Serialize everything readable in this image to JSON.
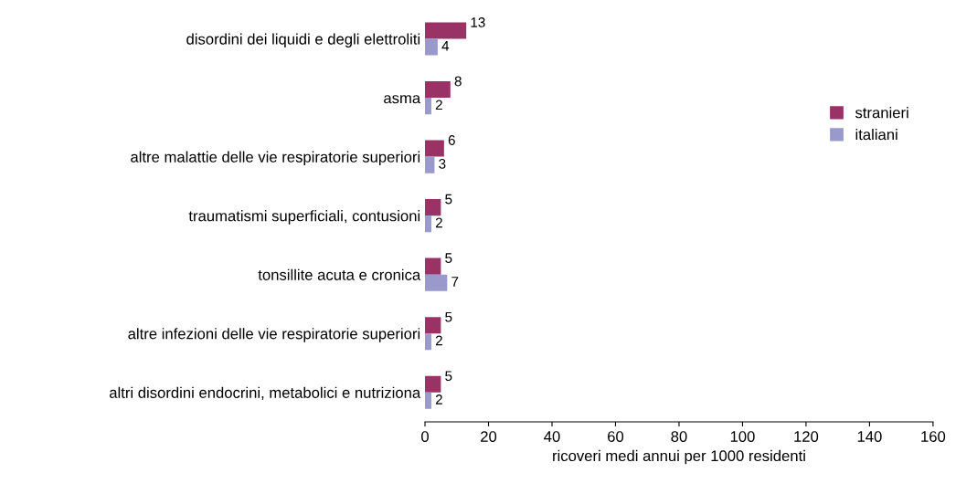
{
  "chart_data": {
    "type": "bar",
    "orientation": "horizontal",
    "xlabel": "ricoveri medi annui per 1000 residenti",
    "categories": [
      "disordini dei liquidi e degli elettroliti",
      "asma",
      "altre malattie delle vie respiratorie superiori",
      "traumatismi superficiali, contusioni",
      "tonsillite acuta e cronica",
      "altre infezioni delle vie respiratorie superiori",
      "altri disordini endocrini, metabolici e nutriziona"
    ],
    "series": [
      {
        "name": "stranieri",
        "color": "#993366",
        "values": [
          13,
          8,
          6,
          5,
          5,
          5,
          5
        ]
      },
      {
        "name": "italiani",
        "color": "#9999cc",
        "values": [
          4,
          2,
          3,
          2,
          7,
          2,
          2
        ]
      }
    ],
    "xlim": [
      0,
      160
    ],
    "xticks": [
      0,
      20,
      40,
      60,
      80,
      100,
      120,
      140,
      160
    ],
    "data_labels": true,
    "legend": "right",
    "grid": false
  }
}
